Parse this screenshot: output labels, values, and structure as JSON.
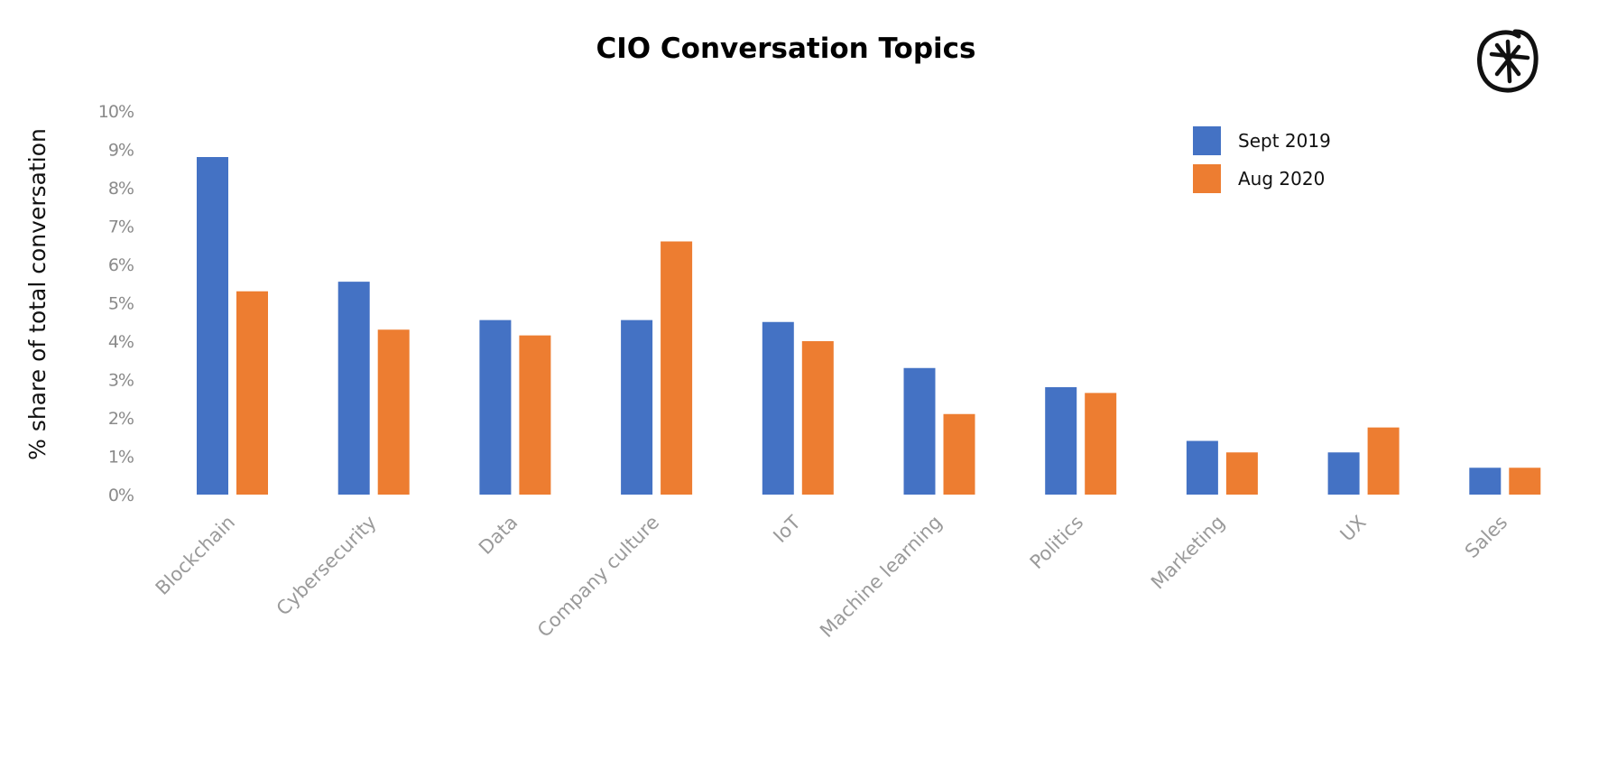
{
  "chart_data": {
    "type": "bar",
    "title": "CIO Conversation Topics",
    "xlabel": "",
    "ylabel": "% share of total conversation",
    "ylim": [
      0,
      10
    ],
    "yticks": [
      "0%",
      "1%",
      "2%",
      "3%",
      "4%",
      "5%",
      "6%",
      "7%",
      "8%",
      "9%",
      "10%"
    ],
    "grid": false,
    "legend_position": "top-right",
    "categories": [
      "Blockchain",
      "Cybersecurity",
      "Data",
      "Company culture",
      "IoT",
      "Machine learning",
      "Politics",
      "Marketing",
      "UX",
      "Sales"
    ],
    "series": [
      {
        "name": "Sept 2019",
        "color": "#4472C4",
        "values": [
          8.8,
          5.55,
          4.55,
          4.55,
          4.5,
          3.3,
          2.8,
          1.4,
          1.1,
          0.7
        ]
      },
      {
        "name": "Aug 2020",
        "color": "#ED7D31",
        "values": [
          5.3,
          4.3,
          4.15,
          6.6,
          4.0,
          2.1,
          2.65,
          1.1,
          1.75,
          0.7
        ]
      }
    ]
  },
  "logo": {
    "icon": "asterisk-in-circle-logo"
  }
}
